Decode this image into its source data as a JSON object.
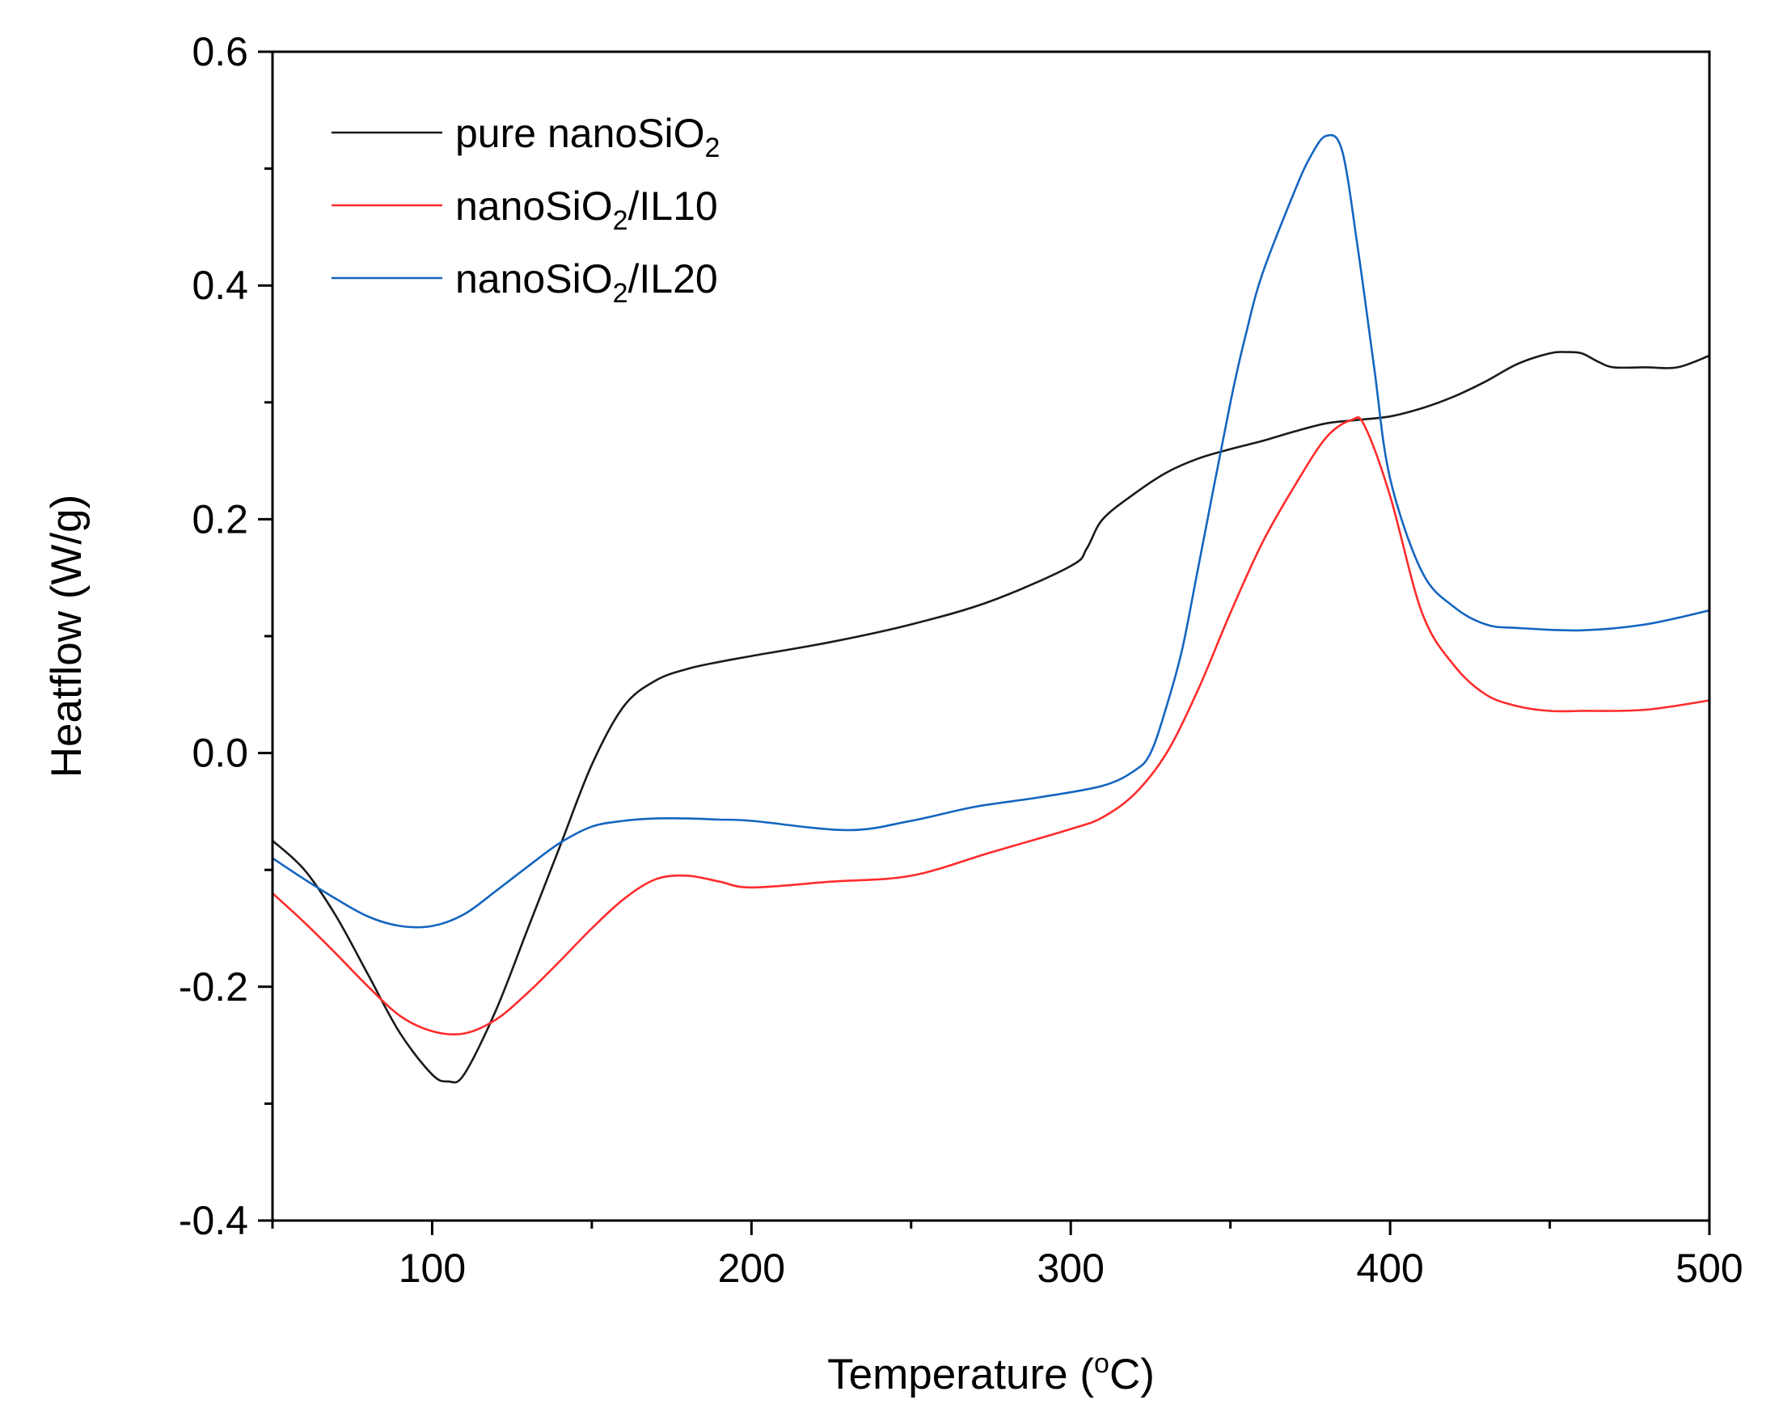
{
  "chart_data": {
    "type": "line",
    "title": "",
    "xlabel": {
      "text": "Temperature (",
      "sup": "o",
      "after": "C)"
    },
    "ylabel": "Heatflow (W/g)",
    "xlim": [
      50,
      500
    ],
    "ylim": [
      -0.4,
      0.6
    ],
    "x_ticks": [
      100,
      200,
      300,
      400,
      500
    ],
    "x_tick_labels": [
      "100",
      "200",
      "300",
      "400",
      "500"
    ],
    "x_minor_ticks": [
      50,
      150,
      250,
      350,
      450
    ],
    "y_ticks": [
      -0.4,
      -0.2,
      0.0,
      0.2,
      0.4,
      0.6
    ],
    "y_tick_labels": [
      "-0.4",
      "-0.2",
      "0.0",
      "0.2",
      "0.4",
      "0.6"
    ],
    "y_minor_ticks": [
      -0.3,
      -0.1,
      0.1,
      0.3,
      0.5
    ],
    "grid": false,
    "legend_position": "top-left",
    "series": [
      {
        "name": "pure nanoSiO2",
        "label_main": "pure nanoSiO",
        "label_sub": "2",
        "label_tail": "",
        "color": "#1a1a1a",
        "x": [
          50,
          60,
          70,
          80,
          90,
          100,
          105,
          110,
          120,
          130,
          140,
          150,
          160,
          170,
          180,
          190,
          200,
          225,
          250,
          275,
          300,
          305,
          310,
          320,
          330,
          340,
          350,
          360,
          370,
          380,
          390,
          400,
          410,
          420,
          430,
          440,
          450,
          455,
          460,
          465,
          470,
          480,
          490,
          500
        ],
        "values": [
          -0.075,
          -0.1,
          -0.14,
          -0.19,
          -0.24,
          -0.275,
          -0.281,
          -0.275,
          -0.22,
          -0.15,
          -0.08,
          -0.01,
          0.04,
          0.062,
          0.072,
          0.078,
          0.083,
          0.095,
          0.11,
          0.13,
          0.16,
          0.175,
          0.2,
          0.222,
          0.24,
          0.252,
          0.26,
          0.267,
          0.275,
          0.282,
          0.285,
          0.288,
          0.295,
          0.305,
          0.318,
          0.333,
          0.342,
          0.343,
          0.342,
          0.335,
          0.33,
          0.33,
          0.33,
          0.34
        ]
      },
      {
        "name": "nanoSiO2/IL10",
        "label_main": "nanoSiO",
        "label_sub": "2",
        "label_tail": "/IL10",
        "color": "#ff2b2b",
        "x": [
          50,
          60,
          70,
          80,
          90,
          100,
          110,
          120,
          130,
          140,
          150,
          160,
          170,
          180,
          190,
          200,
          225,
          250,
          275,
          300,
          310,
          320,
          330,
          340,
          350,
          360,
          370,
          380,
          388,
          392,
          400,
          410,
          420,
          430,
          440,
          450,
          460,
          480,
          500
        ],
        "values": [
          -0.12,
          -0.145,
          -0.172,
          -0.2,
          -0.225,
          -0.238,
          -0.24,
          -0.228,
          -0.205,
          -0.178,
          -0.15,
          -0.125,
          -0.108,
          -0.105,
          -0.11,
          -0.115,
          -0.11,
          -0.105,
          -0.085,
          -0.065,
          -0.055,
          -0.035,
          0.0,
          0.055,
          0.12,
          0.18,
          0.228,
          0.27,
          0.285,
          0.28,
          0.22,
          0.12,
          0.075,
          0.05,
          0.04,
          0.036,
          0.036,
          0.037,
          0.045
        ]
      },
      {
        "name": "nanoSiO2/IL20",
        "label_main": "nanoSiO",
        "label_sub": "2",
        "label_tail": "/IL20",
        "color": "#1565c0",
        "x": [
          50,
          60,
          70,
          80,
          90,
          100,
          110,
          120,
          130,
          140,
          150,
          160,
          170,
          180,
          190,
          200,
          230,
          250,
          270,
          290,
          310,
          320,
          325,
          330,
          335,
          340,
          350,
          355,
          360,
          370,
          375,
          380,
          385,
          390,
          395,
          400,
          410,
          420,
          430,
          440,
          460,
          480,
          500
        ],
        "values": [
          -0.09,
          -0.108,
          -0.125,
          -0.14,
          -0.148,
          -0.148,
          -0.138,
          -0.118,
          -0.097,
          -0.077,
          -0.063,
          -0.058,
          -0.056,
          -0.056,
          -0.057,
          -0.058,
          -0.066,
          -0.058,
          -0.046,
          -0.038,
          -0.028,
          -0.015,
          0.0,
          0.04,
          0.09,
          0.16,
          0.3,
          0.36,
          0.41,
          0.48,
          0.51,
          0.528,
          0.515,
          0.43,
          0.33,
          0.235,
          0.155,
          0.125,
          0.11,
          0.107,
          0.105,
          0.11,
          0.122
        ]
      }
    ]
  }
}
